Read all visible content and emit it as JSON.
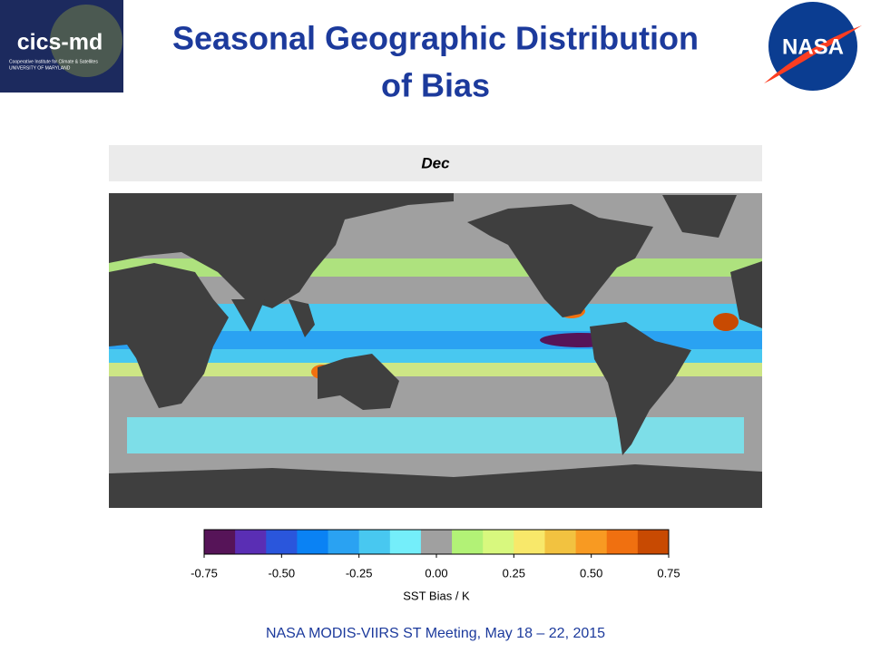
{
  "header": {
    "title_lines": [
      "Seasonal Geographic Distribution",
      "of Bias"
    ],
    "left_logo": {
      "name": "cics-md",
      "line1": "Cooperative Institute for Climate & Satellites",
      "line2": "UNIVERSITY OF MARYLAND"
    },
    "right_logo": "NASA"
  },
  "panel": {
    "label": "Dec"
  },
  "colorbar": {
    "range": [
      -0.75,
      0.75
    ],
    "colors": [
      "#561458",
      "#5a2eb4",
      "#2a56dc",
      "#0a82f4",
      "#2aa2f2",
      "#48c8f0",
      "#74eefa",
      "#a0a0a0",
      "#b2f276",
      "#d8f87e",
      "#f8e86a",
      "#f2c240",
      "#f89a22",
      "#f07010",
      "#c84a02"
    ],
    "ticks": [
      {
        "value": -0.75,
        "label": "-0.75"
      },
      {
        "value": -0.5,
        "label": "-0.50"
      },
      {
        "value": -0.25,
        "label": "-0.25"
      },
      {
        "value": 0,
        "label": "0.00"
      },
      {
        "value": 0.25,
        "label": "0.25"
      },
      {
        "value": 0.5,
        "label": "0.50"
      },
      {
        "value": 0.75,
        "label": "0.75"
      }
    ],
    "label": "SST Bias / K"
  },
  "footer": "NASA MODIS-VIIRS ST Meeting, May 18 – 22, 2015"
}
